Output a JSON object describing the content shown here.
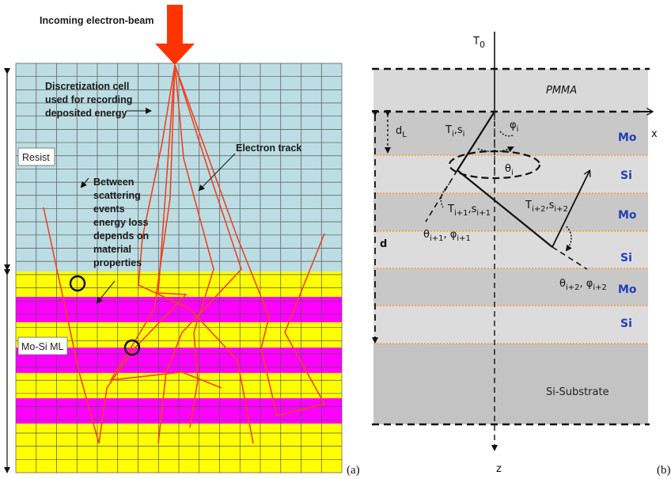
{
  "colors": {
    "resist": "#bcdde3",
    "yellow": "#ffff00",
    "magenta": "#ff00ff",
    "grid": "#555555",
    "track": "#ee4422",
    "beam_arrow": "#ff3300",
    "pmma": "#d9d9d9",
    "mo": "#c8c8c8",
    "si": "#dcdcdc",
    "substrate": "#c3c3c3",
    "interface": "#ff9933",
    "label_blue": "#1f3fbf"
  },
  "panel_a": {
    "beam_label": "Incoming electron-beam",
    "cell_label_lines": [
      "Discretization cell",
      "used for recording",
      "deposited energy"
    ],
    "resist_label": "Resist",
    "electron_track_label": "Electron track",
    "energy_loss_lines": [
      "Between",
      "scattering",
      "events",
      "energy loss",
      "depends on",
      "material",
      "properties"
    ],
    "ml_label": "Mo-Si ML",
    "panel_label": "(a)"
  },
  "panel_b": {
    "t0_label": "T",
    "t0_sub": "0",
    "pmma_label": "PMMA",
    "x_label": "x",
    "z_label": "z",
    "dl_label": "d",
    "dl_sub": "L",
    "d_label": "d",
    "layers": [
      "Mo",
      "Si",
      "Mo",
      "Si",
      "Mo",
      "Si"
    ],
    "substrate_label": "Si-Substrate",
    "ti_si": {
      "T": "T",
      "Tsub": "i",
      "s": "s",
      "ssub": "i"
    },
    "phi_i": {
      "sym": "φ",
      "sub": "i"
    },
    "theta_i": {
      "sym": "θ",
      "sub": "i"
    },
    "ti1_si1": {
      "T": "T",
      "Tsub": "i+1",
      "s": "s",
      "ssub": "i+1"
    },
    "ti2_si2": {
      "T": "T",
      "Tsub": "i+2",
      "s": "s",
      "ssub": "i+2"
    },
    "theta_phi_i1": {
      "t": "θ",
      "tsub": "i+1",
      "p": "φ",
      "psub": "i+1"
    },
    "theta_phi_i2": {
      "t": "θ",
      "tsub": "i+2",
      "p": "φ",
      "psub": "i+2"
    },
    "panel_label": "(b)"
  }
}
